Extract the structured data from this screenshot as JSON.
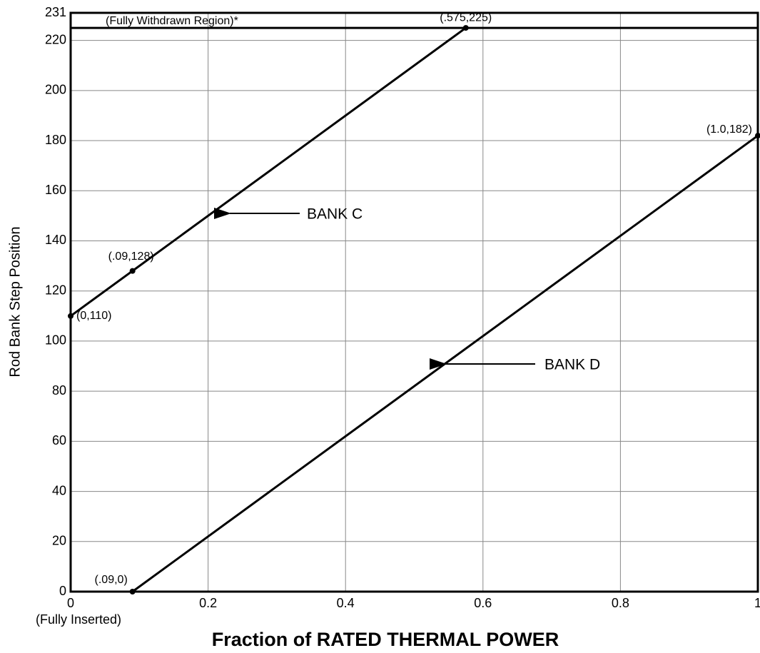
{
  "chart_data": {
    "type": "line",
    "ylabel": "Rod Bank Step Position",
    "xlabel": "Fraction of RATED THERMAL POWER",
    "x_note": "(Fully Inserted)",
    "withdrawn_line": {
      "value": 225,
      "label": "(Fully Withdrawn Region)*"
    },
    "xlim": [
      0,
      1
    ],
    "xticks": [
      0,
      0.2,
      0.4,
      0.6,
      0.8,
      1
    ],
    "ylim": [
      0,
      231
    ],
    "yticks": [
      0,
      20,
      40,
      60,
      80,
      100,
      120,
      140,
      160,
      180,
      200,
      220,
      231
    ],
    "grid": true,
    "series": [
      {
        "name": "BANK C",
        "color": "#000000",
        "x": [
          0,
          0.09,
          0.575
        ],
        "values": [
          110,
          128,
          225
        ],
        "value_labels": [
          "(0,110)",
          "(.09,128)",
          "(.575,225)"
        ]
      },
      {
        "name": "BANK D",
        "color": "#000000",
        "x": [
          0.09,
          1.0
        ],
        "values": [
          0,
          182
        ],
        "value_labels": [
          "(.09,0)",
          "(1.0,182)"
        ]
      }
    ]
  }
}
